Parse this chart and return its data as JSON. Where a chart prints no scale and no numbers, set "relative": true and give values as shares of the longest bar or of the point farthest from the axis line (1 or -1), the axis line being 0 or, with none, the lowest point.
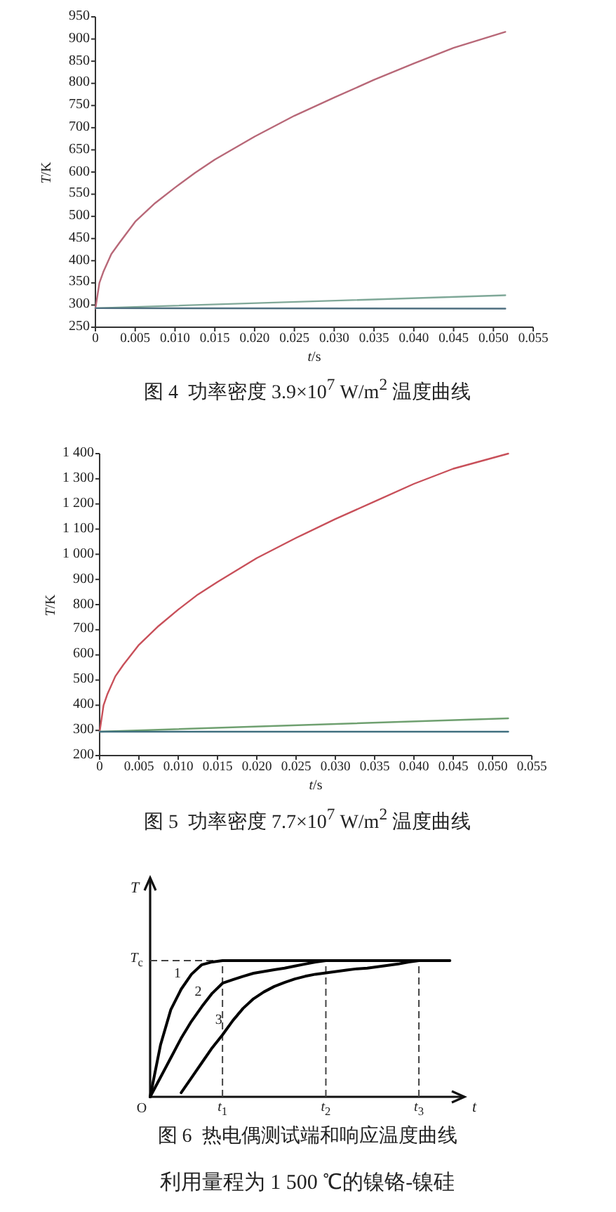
{
  "chart_data": [
    {
      "type": "line",
      "title": "图 4  功率密度 3.9×10$^{7}$ W/m$^{2}$ 温度曲线",
      "xlabel": "*t*/s",
      "ylabel": "*T*/K",
      "line_style": "solid",
      "xlim": [
        0,
        0.055
      ],
      "ylim": [
        250,
        950
      ],
      "xticks": [
        0,
        0.005,
        {
          "value": 0.01,
          "label": "0.010"
        },
        0.015,
        {
          "value": 0.02,
          "label": "0.020"
        },
        0.025,
        {
          "value": 0.03,
          "label": "0.030"
        },
        0.035,
        {
          "value": 0.04,
          "label": "0.040"
        },
        0.045,
        {
          "value": 0.05,
          "label": "0.050"
        },
        0.055
      ],
      "yticks": [
        250,
        300,
        350,
        400,
        450,
        500,
        550,
        600,
        650,
        700,
        750,
        800,
        850,
        900,
        950
      ],
      "series": [
        {
          "color": "#b86878",
          "x": [
            0,
            0.0005,
            0.001,
            0.002,
            0.003,
            0.005,
            0.0075,
            0.01,
            0.0125,
            0.015,
            0.02,
            0.025,
            0.03,
            0.035,
            0.04,
            0.045,
            0.0515
          ],
          "values": [
            292,
            350,
            375,
            415,
            440,
            488,
            530,
            565,
            598,
            628,
            680,
            727,
            768,
            808,
            845,
            880,
            916
          ]
        },
        {
          "color": "#7fa898",
          "x": [
            0,
            0.0515
          ],
          "values": [
            293,
            322
          ]
        },
        {
          "color": "#4f6f80",
          "x": [
            0,
            0.0515
          ],
          "values": [
            293,
            292
          ]
        }
      ]
    },
    {
      "type": "line",
      "title": "图 5  功率密度 7.7×10$^{7}$ W/m$^{2}$ 温度曲线",
      "xlabel": "*t*/s",
      "ylabel": "*T*/K",
      "line_style": "solid",
      "xlim": [
        0,
        0.055
      ],
      "ylim": [
        200,
        1400
      ],
      "xticks": [
        0,
        0.005,
        {
          "value": 0.01,
          "label": "0.010"
        },
        0.015,
        {
          "value": 0.02,
          "label": "0.020"
        },
        0.025,
        {
          "value": 0.03,
          "label": "0.030"
        },
        0.035,
        {
          "value": 0.04,
          "label": "0.040"
        },
        0.045,
        {
          "value": 0.05,
          "label": "0.050"
        },
        0.055
      ],
      "yticks": [
        200,
        300,
        400,
        500,
        600,
        700,
        800,
        900,
        {
          "value": 1000,
          "label": "1 000"
        },
        {
          "value": 1100,
          "label": "1 100"
        },
        {
          "value": 1200,
          "label": "1 200"
        },
        {
          "value": 1300,
          "label": "1 300"
        },
        {
          "value": 1400,
          "label": "1 400"
        }
      ],
      "series": [
        {
          "color": "#c8505a",
          "x": [
            0,
            0.0005,
            0.001,
            0.002,
            0.003,
            0.005,
            0.0075,
            0.01,
            0.0125,
            0.015,
            0.02,
            0.025,
            0.03,
            0.035,
            0.04,
            0.045,
            0.052
          ],
          "values": [
            295,
            400,
            445,
            515,
            560,
            640,
            715,
            780,
            840,
            890,
            985,
            1065,
            1140,
            1210,
            1280,
            1340,
            1400
          ]
        },
        {
          "color": "#6fa070",
          "x": [
            0,
            0.052
          ],
          "values": [
            295,
            348
          ]
        },
        {
          "color": "#3f6f7f",
          "x": [
            0,
            0.052
          ],
          "values": [
            295,
            295
          ]
        }
      ]
    },
    {
      "type": "line",
      "relative": true,
      "title": "图 6  热电偶测试端和响应温度曲线",
      "xlabel": "*t*",
      "ylabel": "*T*",
      "line_style": "solid",
      "categories": [
        "O",
        null,
        null,
        null,
        null,
        null,
        null,
        "*t*$_{1}$",
        null,
        null,
        null,
        null,
        null,
        null,
        null,
        null,
        null,
        "*t*$_{2}$",
        null,
        null,
        null,
        null,
        null,
        null,
        null,
        null,
        "*t*$_{3}$",
        null,
        null,
        null
      ],
      "series": [
        {
          "name": "1",
          "color": "#000000",
          "values": [
            0,
            0.38,
            0.64,
            0.79,
            0.9,
            0.97,
            0.99,
            1,
            1,
            1,
            1,
            1,
            1,
            1,
            1,
            1,
            1,
            1,
            1,
            1,
            1,
            1,
            1,
            1,
            1,
            1,
            1,
            1,
            1,
            1
          ]
        },
        {
          "name": "2",
          "color": "#000000",
          "values": [
            0,
            0.143,
            0.286,
            0.43,
            0.555,
            0.662,
            0.76,
            0.834,
            0.86,
            0.885,
            0.907,
            0.92,
            0.933,
            0.945,
            0.96,
            0.975,
            0.99,
            1,
            null,
            null,
            null,
            null,
            null,
            null,
            null,
            null,
            null,
            null,
            null,
            null
          ]
        },
        {
          "name": "3",
          "color": "#000000",
          "values": [
            null,
            null,
            null,
            0.03,
            0.14,
            0.25,
            0.36,
            0.455,
            0.56,
            0.65,
            0.72,
            0.77,
            0.81,
            0.84,
            0.865,
            0.885,
            0.9,
            0.91,
            0.92,
            0.93,
            0.94,
            0.945,
            0.955,
            0.965,
            0.975,
            0.99,
            1,
            null,
            null,
            null
          ]
        }
      ],
      "ref_lines": [
        {
          "axis": "y",
          "value": 1,
          "label": "*T*$_{c}$",
          "line_style": "dashed"
        },
        {
          "axis": "x",
          "value": "*t*$_{1}$",
          "line_style": "dashed"
        },
        {
          "axis": "x",
          "value": "*t*$_{2}$",
          "line_style": "dashed"
        },
        {
          "axis": "x",
          "value": "*t*$_{3}$",
          "line_style": "dashed"
        }
      ],
      "annotations": [
        "利用量程为 1 500 ℃的镍铬-镍硅"
      ]
    }
  ]
}
